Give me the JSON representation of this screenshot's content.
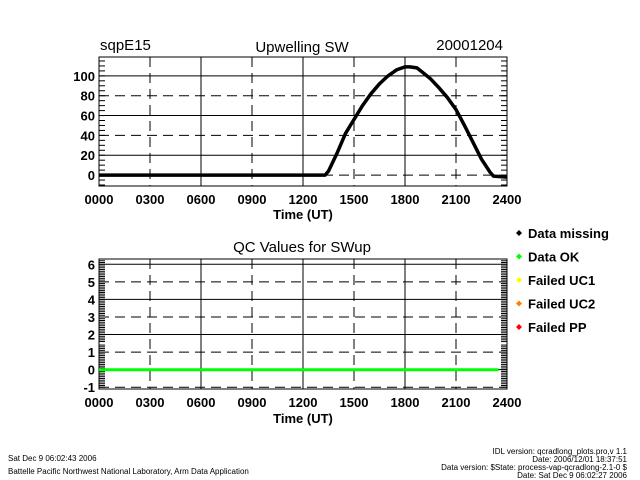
{
  "chart_data": [
    {
      "type": "line",
      "title": "Upwelling SW",
      "site_label": "sqpE15",
      "date_label": "20001204",
      "xlabel": "Time (UT)",
      "ylabel": "",
      "xlim": [
        0,
        24
      ],
      "ylim": [
        -11,
        119
      ],
      "x_tick_labels": [
        "0000",
        "0300",
        "0600",
        "0900",
        "1200",
        "1500",
        "1800",
        "2100",
        "2400"
      ],
      "x_ticks": [
        0,
        3,
        6,
        9,
        12,
        15,
        18,
        21,
        24
      ],
      "y_ticks": [
        0,
        20,
        40,
        60,
        80,
        100
      ],
      "y_tick_labels": [
        "0",
        "20",
        "40",
        "60",
        "80",
        "100"
      ],
      "grid": true,
      "series": [
        {
          "name": "SWup",
          "color": "#000000",
          "x": [
            0,
            2,
            4,
            6,
            8,
            10,
            12,
            13.3,
            13.5,
            14,
            14.5,
            15,
            15.5,
            16,
            16.5,
            17,
            17.5,
            18,
            18.3,
            18.7,
            19,
            19.5,
            20,
            20.5,
            21,
            21.5,
            22,
            22.5,
            23,
            23.2,
            24
          ],
          "y": [
            0,
            0,
            0,
            0,
            0,
            0,
            0,
            0,
            4,
            22,
            42,
            56,
            70,
            82,
            92,
            100,
            106,
            109,
            109,
            108,
            104,
            97,
            88,
            78,
            66,
            50,
            33,
            16,
            3,
            -1,
            -2
          ]
        }
      ]
    },
    {
      "type": "line",
      "title": "QC Values for SWup",
      "xlabel": "Time (UT)",
      "xlim": [
        0,
        24
      ],
      "ylim": [
        -1.1,
        6.3
      ],
      "x_tick_labels": [
        "0000",
        "0300",
        "0600",
        "0900",
        "1200",
        "1500",
        "1800",
        "2100",
        "2400"
      ],
      "x_ticks": [
        0,
        3,
        6,
        9,
        12,
        15,
        18,
        21,
        24
      ],
      "y_ticks": [
        -1,
        0,
        1,
        2,
        3,
        4,
        5,
        6
      ],
      "y_tick_labels": [
        "-1",
        "0",
        "1",
        "2",
        "3",
        "4",
        "5",
        "6"
      ],
      "grid": true,
      "series": [
        {
          "name": "QC",
          "color": "#00ff00",
          "x": [
            0,
            23.5
          ],
          "y": [
            0,
            0
          ]
        }
      ],
      "legend": {
        "placement": "right",
        "entries": [
          {
            "label": "Data missing",
            "color": "#000000"
          },
          {
            "label": "Data OK",
            "color": "#00ff00"
          },
          {
            "label": "Failed UC1",
            "color": "#ffff00"
          },
          {
            "label": "Failed UC2",
            "color": "#ff8000"
          },
          {
            "label": "Failed PP",
            "color": "#ff0000"
          }
        ]
      }
    }
  ],
  "footer": {
    "run_date": "Sat Dec  9 06:02:43 2006",
    "organization": "Battelle Pacific Northwest National Laboratory, Arm Data Application",
    "idl_version": "IDL version: qcradlong_plots.pro,v 1.1",
    "idl_date": "Date: 2006/12/01 18:37:51",
    "data_version": "Data version: $State: process-vap-qcradlong-2.1-0 $",
    "data_date": "Date: Sat Dec  9 06:02:27 2006"
  }
}
